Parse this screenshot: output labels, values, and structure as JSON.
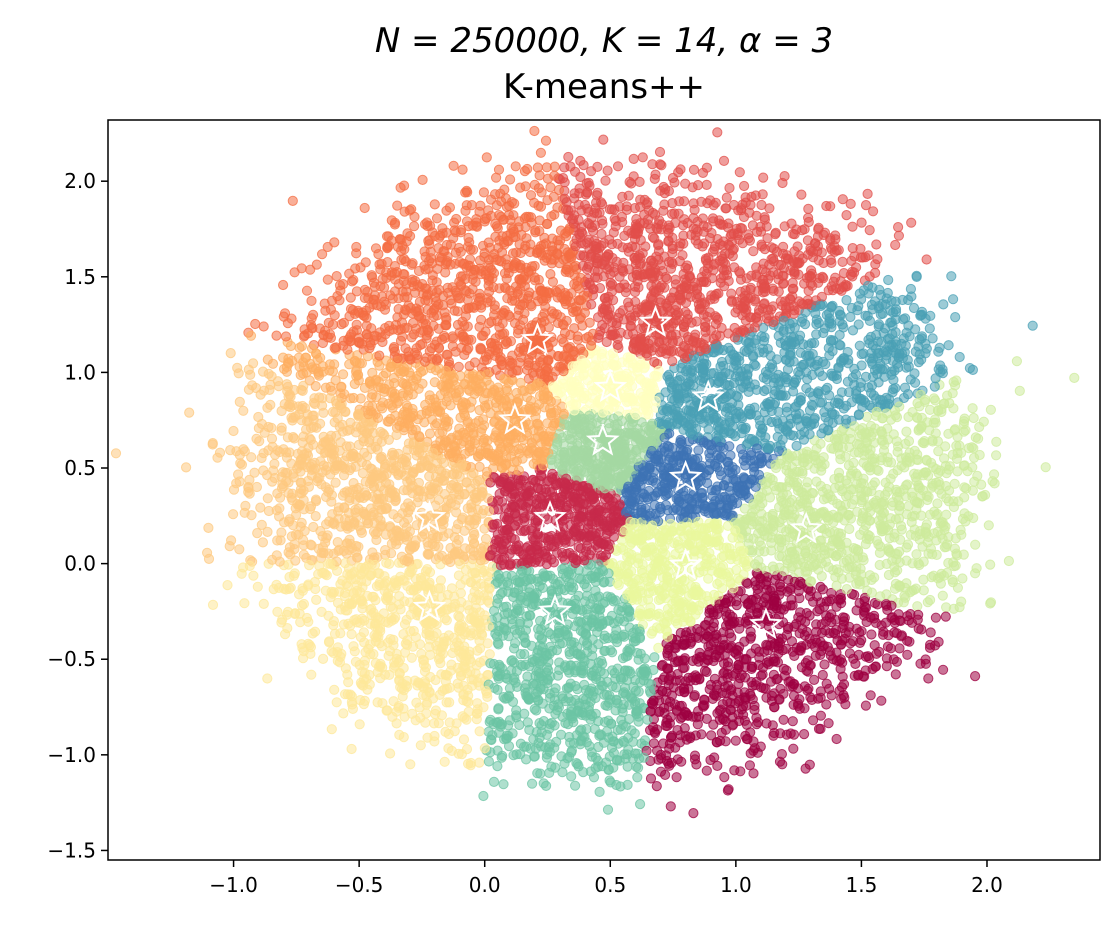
{
  "chart_data": {
    "type": "scatter",
    "title_line1": "N = 250000, K = 14, α = 3",
    "title_line2": "K-means++",
    "xlabel": "",
    "ylabel": "",
    "xlim": [
      -1.5,
      2.45
    ],
    "ylim": [
      -1.55,
      2.32
    ],
    "xticks": [
      -1.0,
      -0.5,
      0.0,
      0.5,
      1.0,
      1.5,
      2.0
    ],
    "xtick_labels": [
      "−1.0",
      "−0.5",
      "0.0",
      "0.5",
      "1.0",
      "1.5",
      "2.0"
    ],
    "yticks": [
      -1.5,
      -1.0,
      -0.5,
      0.0,
      0.5,
      1.0,
      1.5,
      2.0
    ],
    "ytick_labels": [
      "−1.5",
      "−1.0",
      "−0.5",
      "0.0",
      "0.5",
      "1.0",
      "1.5",
      "2.0"
    ],
    "grid": false,
    "legend": "none",
    "marker_center": "white-star",
    "clusters": [
      {
        "color": "#f46d43",
        "center": [
          0.21,
          1.17
        ]
      },
      {
        "color": "#e14f4a",
        "center": [
          0.68,
          1.26
        ]
      },
      {
        "color": "#fdae61",
        "center": [
          0.12,
          0.75
        ]
      },
      {
        "color": "#ffffbf",
        "center": [
          0.5,
          0.92
        ]
      },
      {
        "color": "#4aa0b5",
        "center": [
          0.89,
          0.87
        ]
      },
      {
        "color": "#a4d8a3",
        "center": [
          0.47,
          0.64
        ]
      },
      {
        "color": "#3e73b4",
        "center": [
          0.8,
          0.45
        ]
      },
      {
        "color": "#fec980",
        "center": [
          -0.22,
          0.24
        ]
      },
      {
        "color": "#c72a4b",
        "center": [
          0.26,
          0.24
        ]
      },
      {
        "color": "#cdeb9c",
        "center": [
          1.28,
          0.18
        ]
      },
      {
        "color": "#eaf89d",
        "center": [
          0.8,
          -0.01
        ]
      },
      {
        "color": "#fee899",
        "center": [
          -0.22,
          -0.23
        ]
      },
      {
        "color": "#6cc4a4",
        "center": [
          0.28,
          -0.25
        ]
      },
      {
        "color": "#9e0142",
        "center": [
          1.12,
          -0.32
        ]
      }
    ]
  }
}
